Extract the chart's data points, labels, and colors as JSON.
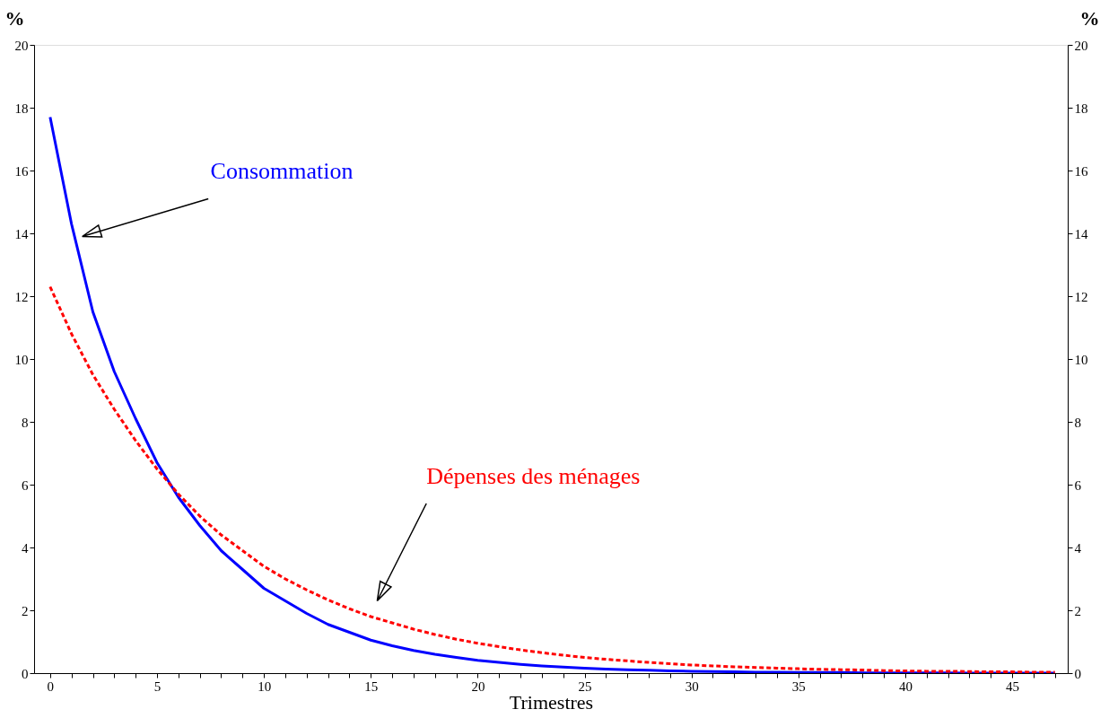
{
  "chart_data": {
    "type": "line",
    "xlabel": "Trimestres",
    "ylabel": "%",
    "y2label": "%",
    "x": [
      0,
      1,
      2,
      3,
      4,
      5,
      6,
      7,
      8,
      9,
      10,
      11,
      12,
      13,
      14,
      15,
      16,
      17,
      18,
      19,
      20,
      21,
      22,
      23,
      24,
      25,
      26,
      27,
      28,
      29,
      30,
      31,
      32,
      33,
      34,
      35,
      36,
      37,
      38,
      39,
      40,
      41,
      42,
      43,
      44,
      45,
      46,
      47
    ],
    "series": [
      {
        "name": "Consommation",
        "color": "#0000ff",
        "line_style": "solid",
        "values": [
          17.7,
          14.3,
          11.5,
          9.6,
          8.1,
          6.7,
          5.6,
          4.7,
          3.9,
          3.3,
          2.7,
          2.3,
          1.9,
          1.55,
          1.3,
          1.05,
          0.87,
          0.72,
          0.6,
          0.5,
          0.41,
          0.34,
          0.28,
          0.23,
          0.19,
          0.16,
          0.13,
          0.11,
          0.09,
          0.07,
          0.06,
          0.05,
          0.04,
          0.03,
          0.03,
          0.02,
          0.02,
          0.02,
          0.01,
          0.01,
          0.01,
          0.01,
          0.01,
          0,
          0,
          0,
          0,
          0
        ]
      },
      {
        "name": "Dépenses des ménages",
        "color": "#ff0000",
        "line_style": "dashed",
        "values": [
          12.3,
          10.8,
          9.5,
          8.4,
          7.4,
          6.5,
          5.7,
          5.0,
          4.4,
          3.9,
          3.4,
          3.0,
          2.65,
          2.33,
          2.05,
          1.8,
          1.6,
          1.4,
          1.23,
          1.08,
          0.95,
          0.84,
          0.74,
          0.65,
          0.57,
          0.5,
          0.44,
          0.39,
          0.34,
          0.3,
          0.26,
          0.23,
          0.2,
          0.18,
          0.16,
          0.14,
          0.12,
          0.11,
          0.1,
          0.08,
          0.07,
          0.06,
          0.06,
          0.05,
          0.04,
          0.04,
          0.03,
          0.03
        ]
      }
    ],
    "xlim": [
      -0.75,
      47.6
    ],
    "xticks": [
      0,
      {
        "value": 1,
        "label": null
      },
      {
        "value": 2,
        "label": null
      },
      {
        "value": 3,
        "label": null
      },
      {
        "value": 4,
        "label": null
      },
      5,
      {
        "value": 6,
        "label": null
      },
      {
        "value": 7,
        "label": null
      },
      {
        "value": 8,
        "label": null
      },
      {
        "value": 9,
        "label": null
      },
      10,
      {
        "value": 11,
        "label": null
      },
      {
        "value": 12,
        "label": null
      },
      {
        "value": 13,
        "label": null
      },
      {
        "value": 14,
        "label": null
      },
      15,
      {
        "value": 16,
        "label": null
      },
      {
        "value": 17,
        "label": null
      },
      {
        "value": 18,
        "label": null
      },
      {
        "value": 19,
        "label": null
      },
      20,
      {
        "value": 21,
        "label": null
      },
      {
        "value": 22,
        "label": null
      },
      {
        "value": 23,
        "label": null
      },
      {
        "value": 24,
        "label": null
      },
      25,
      {
        "value": 26,
        "label": null
      },
      {
        "value": 27,
        "label": null
      },
      {
        "value": 28,
        "label": null
      },
      {
        "value": 29,
        "label": null
      },
      30,
      {
        "value": 31,
        "label": null
      },
      {
        "value": 32,
        "label": null
      },
      {
        "value": 33,
        "label": null
      },
      {
        "value": 34,
        "label": null
      },
      35,
      {
        "value": 36,
        "label": null
      },
      {
        "value": 37,
        "label": null
      },
      {
        "value": 38,
        "label": null
      },
      {
        "value": 39,
        "label": null
      },
      40,
      {
        "value": 41,
        "label": null
      },
      {
        "value": 42,
        "label": null
      },
      {
        "value": 43,
        "label": null
      },
      {
        "value": 44,
        "label": null
      },
      45,
      {
        "value": 46,
        "label": null
      },
      {
        "value": 47,
        "label": null
      }
    ],
    "ylim": [
      0,
      20
    ],
    "yticks": [
      0,
      2,
      4,
      6,
      8,
      10,
      12,
      14,
      16,
      18,
      20
    ],
    "y2lim": [
      0,
      20
    ],
    "y2ticks": [
      0,
      2,
      4,
      6,
      8,
      10,
      12,
      14,
      16,
      18,
      20
    ],
    "grid": false
  }
}
